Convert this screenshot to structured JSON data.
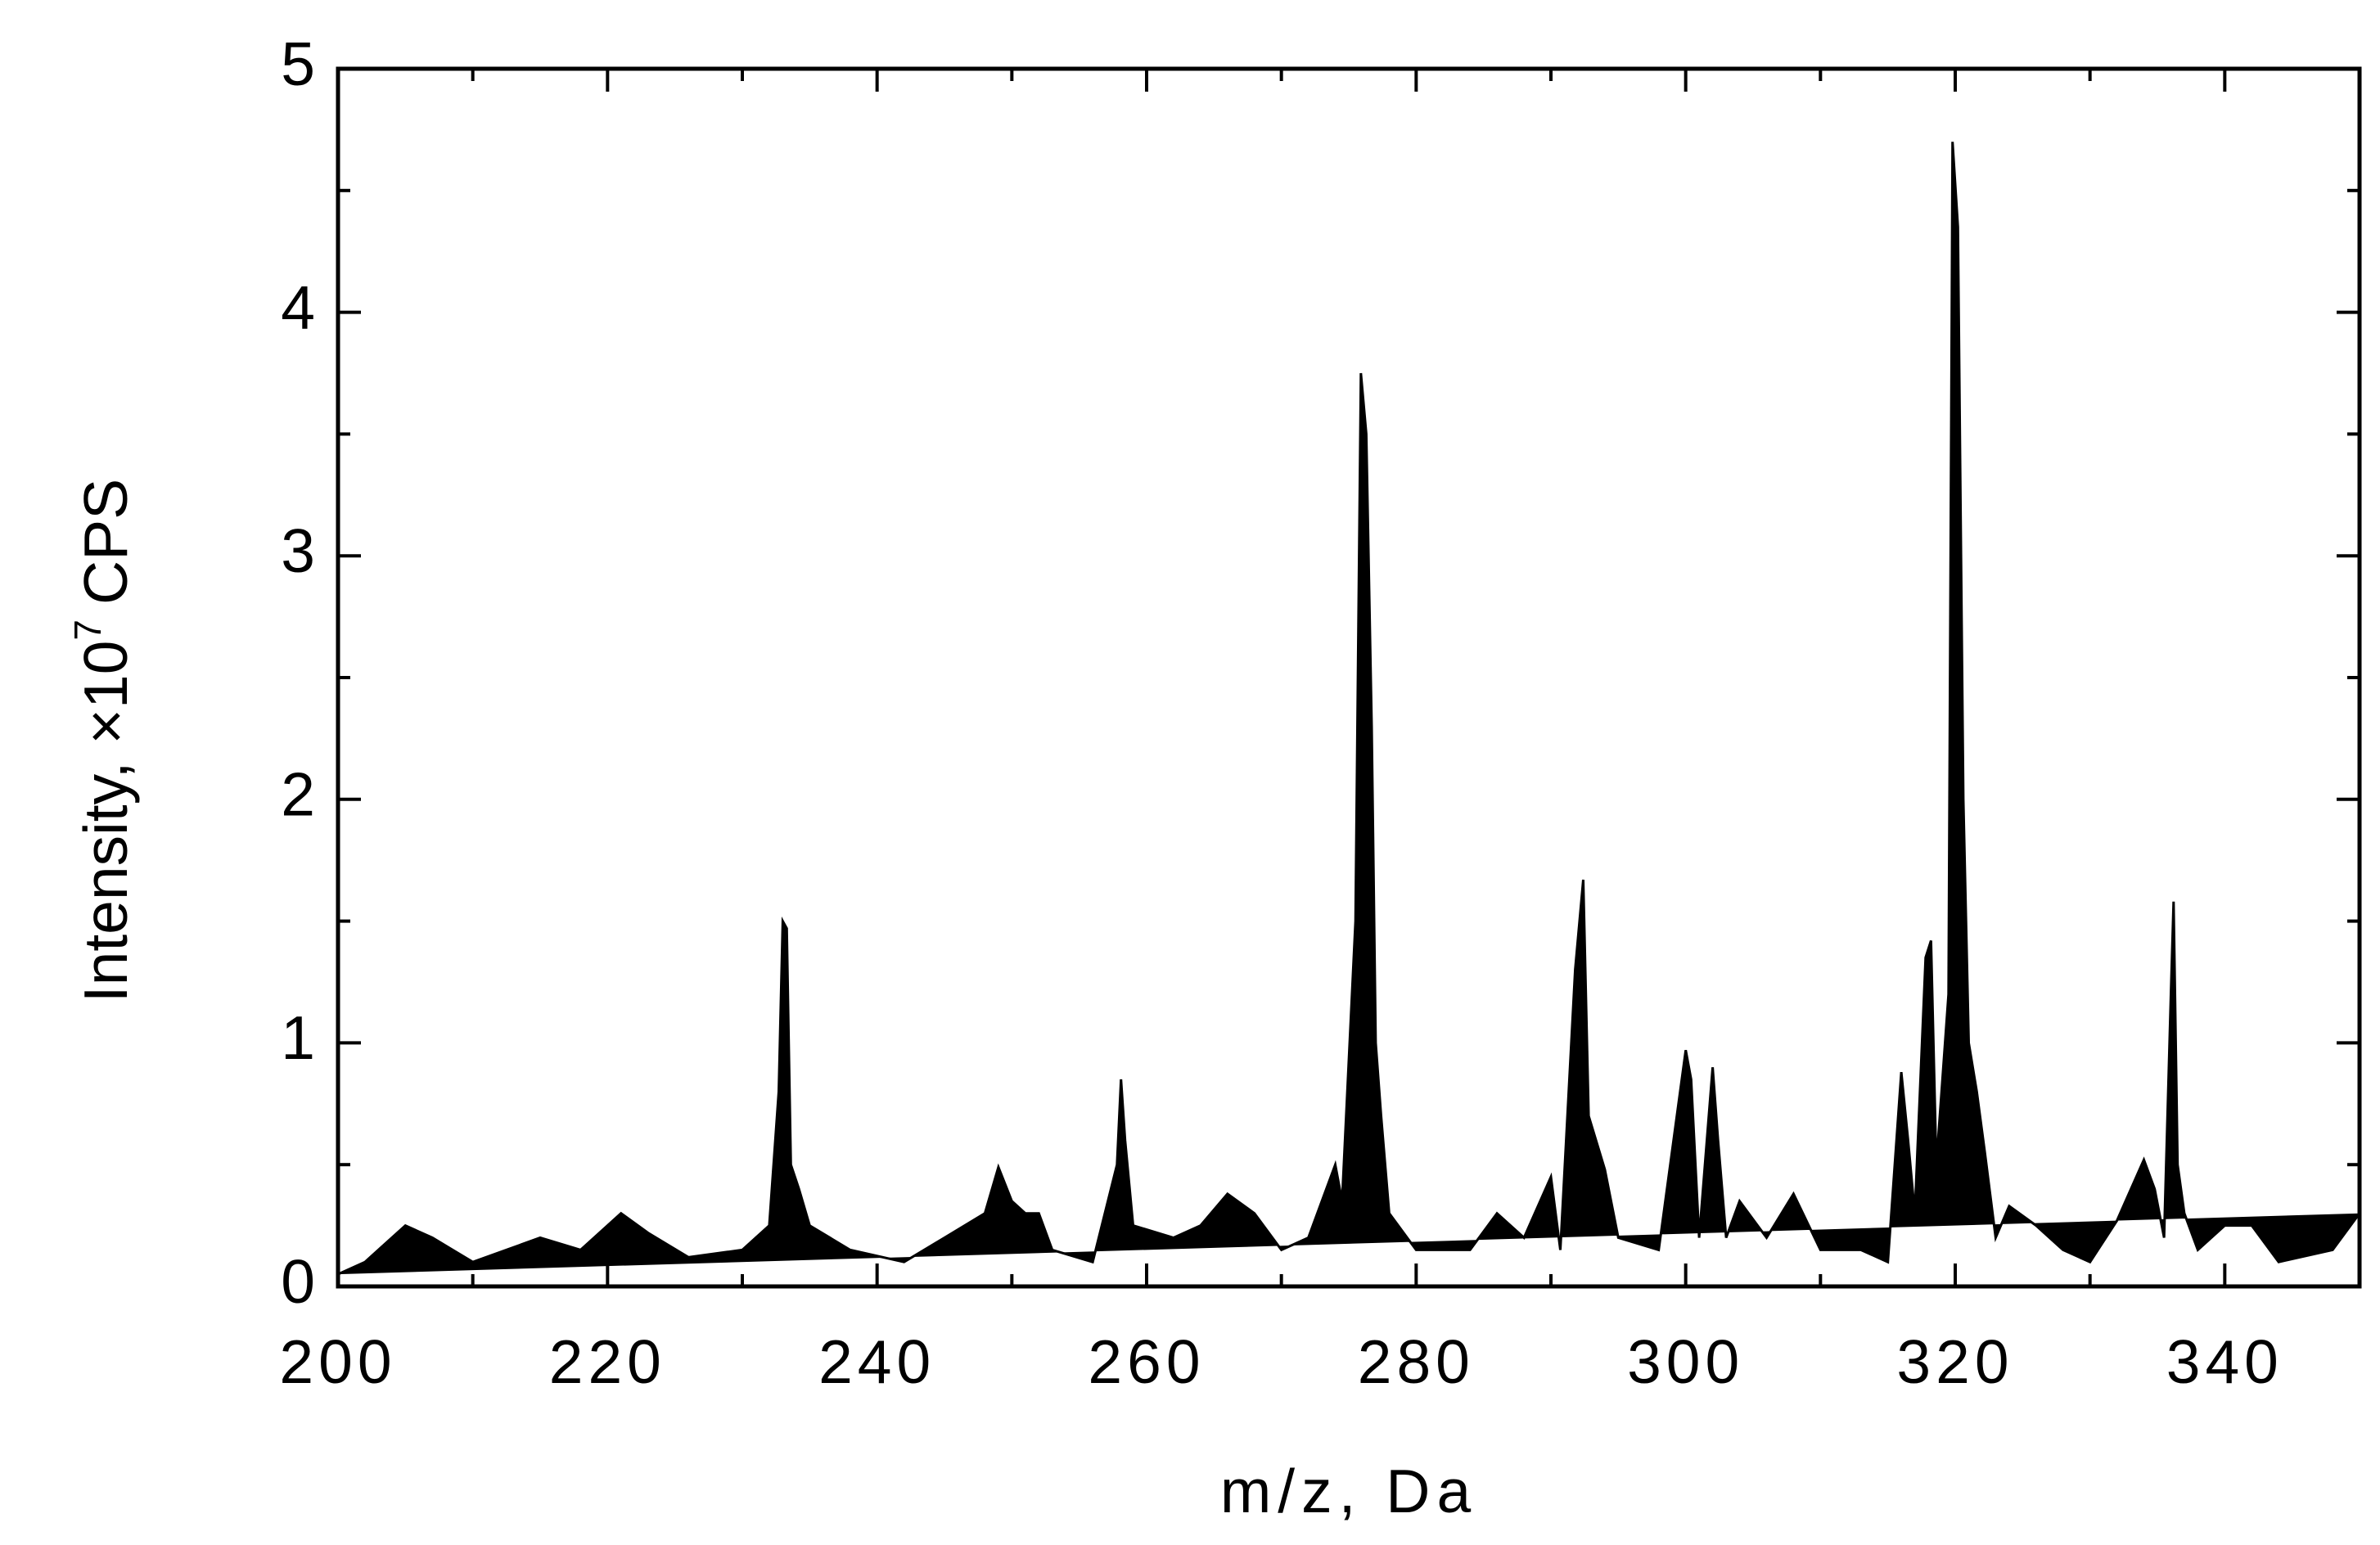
{
  "chart_data": {
    "type": "area",
    "color": "#000000",
    "xlabel": "m/z, Da",
    "ylabel": "Intensity, ×10",
    "ylabel_exponent": "7",
    "ylabel_unit": "CPS",
    "xlim": [
      200,
      350
    ],
    "ylim": [
      0,
      5
    ],
    "xticks": [
      200,
      220,
      240,
      260,
      280,
      300,
      320,
      340
    ],
    "xminorticks": [
      210,
      230,
      250,
      270,
      290,
      310,
      330,
      350
    ],
    "yticks": [
      0,
      1,
      2,
      3,
      4,
      5
    ],
    "yminorticks": [
      0.5,
      1.5,
      2.5,
      3.5,
      4.5
    ],
    "x": [
      200,
      202,
      205,
      207,
      210,
      215,
      218,
      221,
      223,
      226,
      230,
      232,
      232.7,
      233,
      233.3,
      233.6,
      234.2,
      235,
      238,
      242,
      245,
      248,
      249,
      250,
      251,
      252,
      253,
      256,
      257.8,
      258.1,
      258.4,
      259,
      262,
      264,
      266,
      268,
      270,
      272,
      274,
      274.5,
      275.5,
      275.9,
      276.3,
      276.7,
      277,
      277.4,
      278,
      280,
      284,
      286,
      288,
      290,
      290.7,
      291.8,
      292.4,
      292.8,
      294,
      295,
      298,
      300,
      300.4,
      301,
      302,
      302.4,
      303,
      304,
      306,
      308,
      310,
      313,
      315,
      316,
      316.5,
      317,
      317.8,
      318.2,
      318.6,
      319.5,
      319.8,
      320.2,
      320.6,
      321,
      321.6,
      322.2,
      323,
      324,
      326,
      328,
      330,
      332,
      334,
      334.8,
      335.5,
      336,
      336.2,
      336.5,
      337,
      338,
      340,
      342,
      344,
      348,
      350
    ],
    "values": [
      0.05,
      0.1,
      0.25,
      0.2,
      0.1,
      0.2,
      0.15,
      0.3,
      0.22,
      0.12,
      0.15,
      0.25,
      0.8,
      1.5,
      1.47,
      0.5,
      0.4,
      0.25,
      0.15,
      0.1,
      0.2,
      0.3,
      0.49,
      0.35,
      0.3,
      0.3,
      0.15,
      0.1,
      0.5,
      0.85,
      0.6,
      0.25,
      0.2,
      0.25,
      0.38,
      0.3,
      0.15,
      0.2,
      0.5,
      0.35,
      1.5,
      3.75,
      3.5,
      2.3,
      1.0,
      0.7,
      0.3,
      0.15,
      0.15,
      0.3,
      0.2,
      0.45,
      0.15,
      1.3,
      1.67,
      0.7,
      0.48,
      0.2,
      0.15,
      0.97,
      0.85,
      0.2,
      0.9,
      0.6,
      0.2,
      0.35,
      0.2,
      0.38,
      0.15,
      0.15,
      0.1,
      0.88,
      0.6,
      0.3,
      1.35,
      1.42,
      0.5,
      1.2,
      4.7,
      4.35,
      2.0,
      1.0,
      0.8,
      0.55,
      0.2,
      0.33,
      0.25,
      0.15,
      0.1,
      0.27,
      0.52,
      0.4,
      0.2,
      1.2,
      1.58,
      0.5,
      0.3,
      0.15,
      0.25,
      0.25,
      0.1,
      0.15,
      0.3
    ]
  }
}
